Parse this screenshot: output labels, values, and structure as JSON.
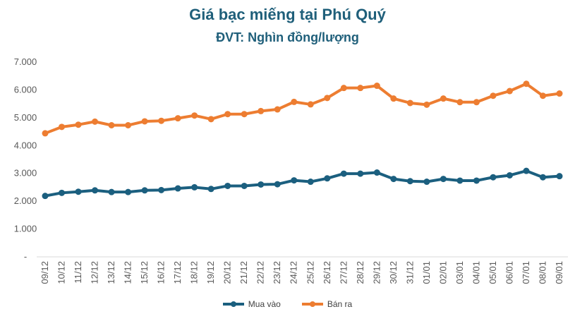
{
  "chart_data": {
    "type": "line",
    "title": "Giá bạc miếng tại Phú Quý",
    "subtitle": "ĐVT: Nghìn đồng/lượng",
    "xlabel": "",
    "ylabel": "",
    "ylim": [
      0,
      7000
    ],
    "yticks": [
      "-",
      "1.000",
      "2.000",
      "3.000",
      "4.000",
      "5.000",
      "6.000",
      "7.000"
    ],
    "grid": false,
    "legend_position": "bottom",
    "categories": [
      "09/12",
      "10/12",
      "11/12",
      "12/12",
      "13/12",
      "14/12",
      "15/12",
      "16/12",
      "17/12",
      "18/12",
      "19/12",
      "20/12",
      "21/12",
      "22/12",
      "23/12",
      "24/12",
      "25/12",
      "26/12",
      "27/12",
      "28/12",
      "29/12",
      "30/12",
      "31/12",
      "01/01",
      "02/01",
      "03/01",
      "04/01",
      "05/01",
      "06/01",
      "07/01",
      "08/01",
      "09/01"
    ],
    "series": [
      {
        "name": "Mua vào",
        "color": "#1b5f7f",
        "values": [
          2190,
          2300,
          2340,
          2390,
          2330,
          2330,
          2390,
          2400,
          2460,
          2500,
          2440,
          2550,
          2550,
          2600,
          2610,
          2750,
          2700,
          2820,
          2990,
          2990,
          3030,
          2800,
          2720,
          2700,
          2800,
          2740,
          2740,
          2860,
          2930,
          3090,
          2860,
          2900
        ]
      },
      {
        "name": "Bán ra",
        "color": "#ed7d31",
        "values": [
          4440,
          4670,
          4750,
          4860,
          4730,
          4730,
          4870,
          4890,
          4980,
          5080,
          4950,
          5130,
          5130,
          5240,
          5300,
          5570,
          5480,
          5710,
          6070,
          6070,
          6150,
          5690,
          5530,
          5470,
          5690,
          5560,
          5560,
          5790,
          5960,
          6220,
          5790,
          5870
        ]
      }
    ]
  }
}
